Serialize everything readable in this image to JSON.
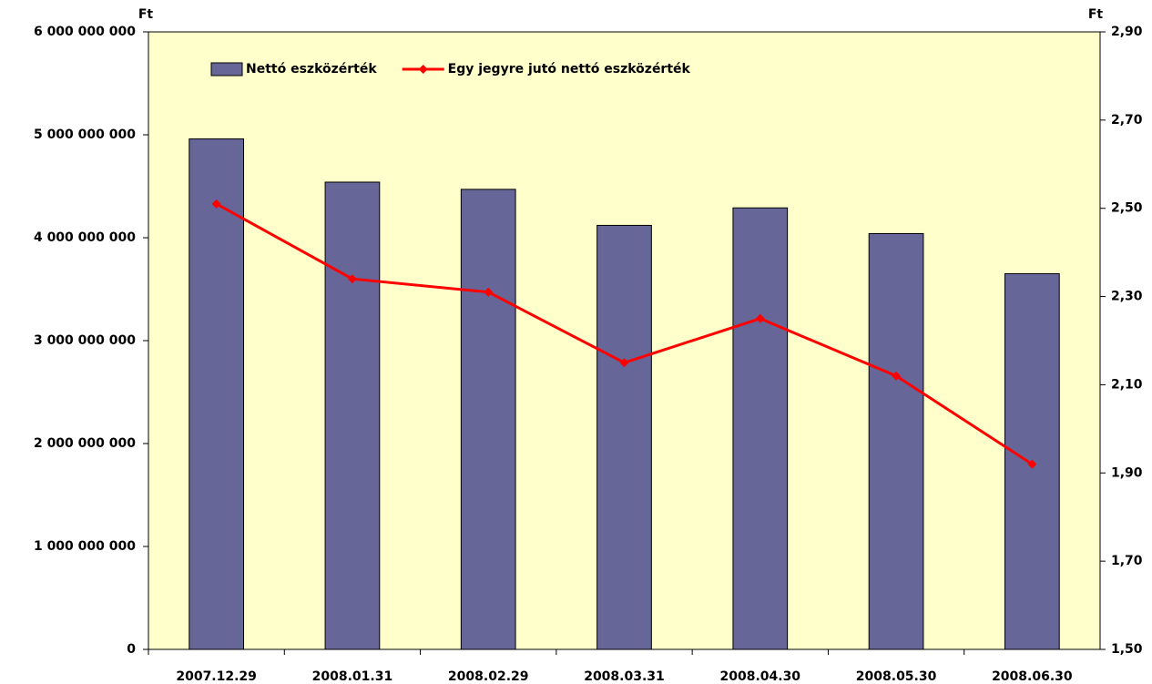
{
  "chart_data": {
    "type": "bar_line",
    "y_label": "Ft",
    "y2_label": "Ft",
    "categories": [
      "2007.12.29",
      "2008.01.31",
      "2008.02.29",
      "2008.03.31",
      "2008.04.30",
      "2008.05.30",
      "2008.06.30"
    ],
    "series": [
      {
        "name": "Nettó eszközérték",
        "type": "bar",
        "color": "#666699",
        "axis": "y",
        "values": [
          4960000000,
          4540000000,
          4470000000,
          4120000000,
          4290000000,
          4040000000,
          3650000000
        ]
      },
      {
        "name": "Egy jegyre jutó nettó eszközérték",
        "type": "line",
        "color": "#ff0000",
        "axis": "y2",
        "values": [
          2.51,
          2.34,
          2.31,
          2.15,
          2.25,
          2.12,
          1.92
        ]
      }
    ],
    "ylim": [
      0,
      6000000000
    ],
    "yticks": [
      0,
      {
        "value": 1000000000,
        "label": "1 000 000 000"
      },
      {
        "value": 2000000000,
        "label": "2 000 000 000"
      },
      {
        "value": 3000000000,
        "label": "3 000 000 000"
      },
      {
        "value": 4000000000,
        "label": "4 000 000 000"
      },
      {
        "value": 5000000000,
        "label": "5 000 000 000"
      },
      {
        "value": 6000000000,
        "label": "6 000 000 000"
      }
    ],
    "y2lim": [
      1.5,
      2.9
    ],
    "y2ticks": [
      {
        "value": 1.5,
        "label": "1,50"
      },
      {
        "value": 1.7,
        "label": "1,70"
      },
      {
        "value": 1.9,
        "label": "1,90"
      },
      {
        "value": 2.1,
        "label": "2,10"
      },
      {
        "value": 2.3,
        "label": "2,30"
      },
      {
        "value": 2.5,
        "label": "2,50"
      },
      {
        "value": 2.7,
        "label": "2,70"
      },
      {
        "value": 2.9,
        "label": "2,90"
      }
    ],
    "background": "#ffffcc",
    "legend": "top-left"
  }
}
